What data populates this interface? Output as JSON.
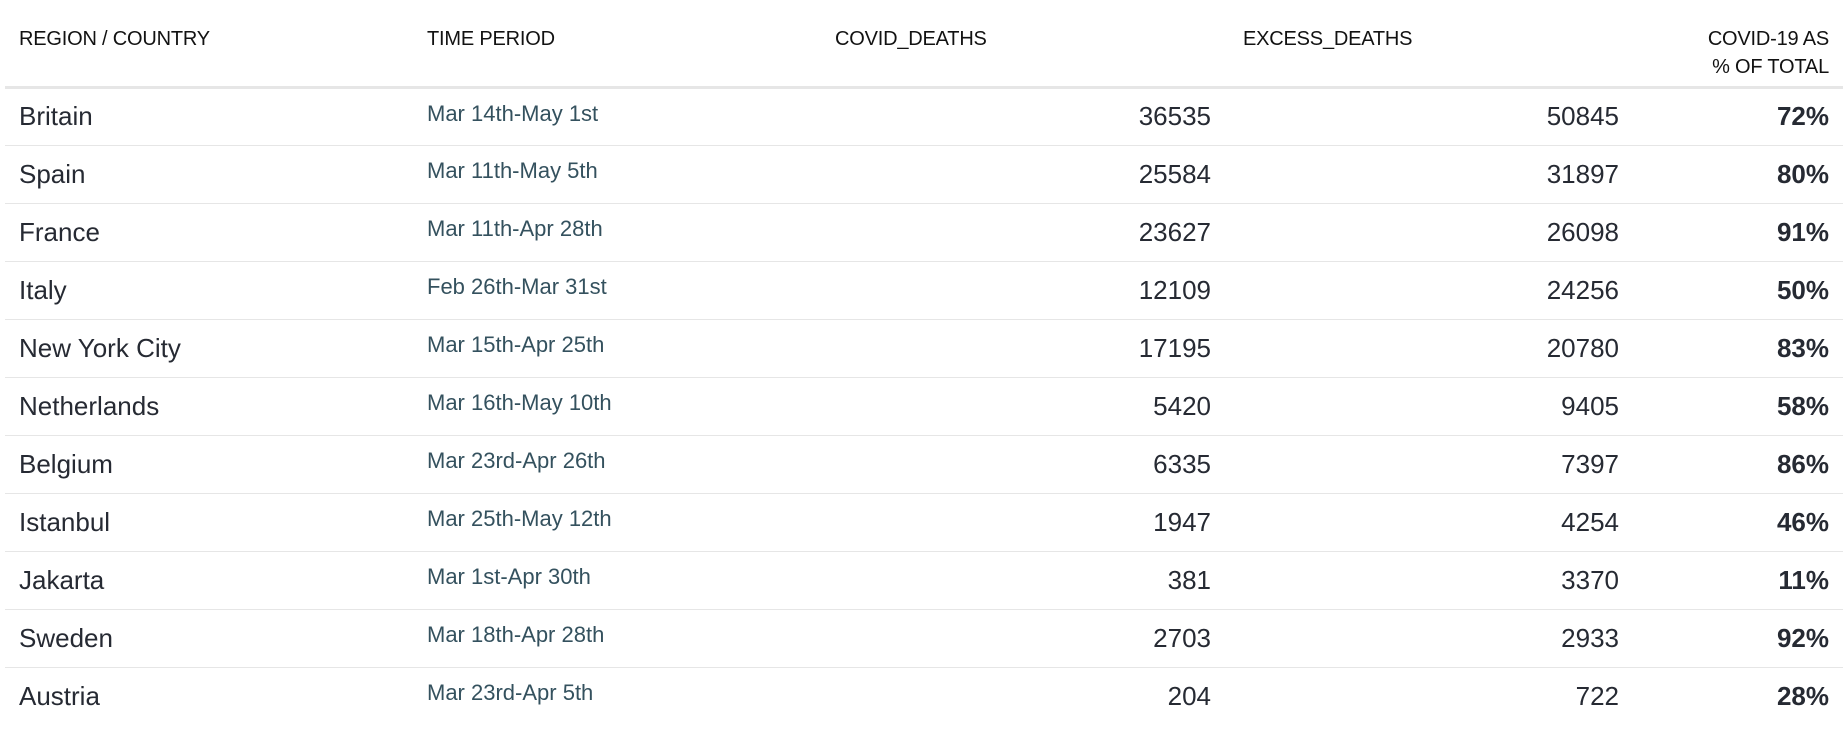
{
  "chart_data": {
    "type": "table",
    "columns": [
      "REGION / COUNTRY",
      "TIME PERIOD",
      "COVID_DEATHS",
      "EXCESS_DEATHS",
      "COVID-19 AS % OF TOTAL"
    ],
    "header_pct_line1": "COVID-19 AS",
    "header_pct_line2": "% OF TOTAL",
    "rows": [
      {
        "region": "Britain",
        "period": "Mar 14th-May 1st",
        "covid_deaths": 36535,
        "excess_deaths": 50845,
        "pct": "72%"
      },
      {
        "region": "Spain",
        "period": "Mar 11th-May 5th",
        "covid_deaths": 25584,
        "excess_deaths": 31897,
        "pct": "80%"
      },
      {
        "region": "France",
        "period": "Mar 11th-Apr 28th",
        "covid_deaths": 23627,
        "excess_deaths": 26098,
        "pct": "91%"
      },
      {
        "region": "Italy",
        "period": "Feb 26th-Mar 31st",
        "covid_deaths": 12109,
        "excess_deaths": 24256,
        "pct": "50%"
      },
      {
        "region": "New York City",
        "period": "Mar 15th-Apr 25th",
        "covid_deaths": 17195,
        "excess_deaths": 20780,
        "pct": "83%"
      },
      {
        "region": "Netherlands",
        "period": "Mar 16th-May 10th",
        "covid_deaths": 5420,
        "excess_deaths": 9405,
        "pct": "58%"
      },
      {
        "region": "Belgium",
        "period": "Mar 23rd-Apr 26th",
        "covid_deaths": 6335,
        "excess_deaths": 7397,
        "pct": "86%"
      },
      {
        "region": "Istanbul",
        "period": "Mar 25th-May 12th",
        "covid_deaths": 1947,
        "excess_deaths": 4254,
        "pct": "46%"
      },
      {
        "region": "Jakarta",
        "period": "Mar 1st-Apr 30th",
        "covid_deaths": 381,
        "excess_deaths": 3370,
        "pct": "11%"
      },
      {
        "region": "Sweden",
        "period": "Mar 18th-Apr 28th",
        "covid_deaths": 2703,
        "excess_deaths": 2933,
        "pct": "92%"
      },
      {
        "region": "Austria",
        "period": "Mar 23rd-Apr 5th",
        "covid_deaths": 204,
        "excess_deaths": 722,
        "pct": "28%"
      }
    ]
  }
}
